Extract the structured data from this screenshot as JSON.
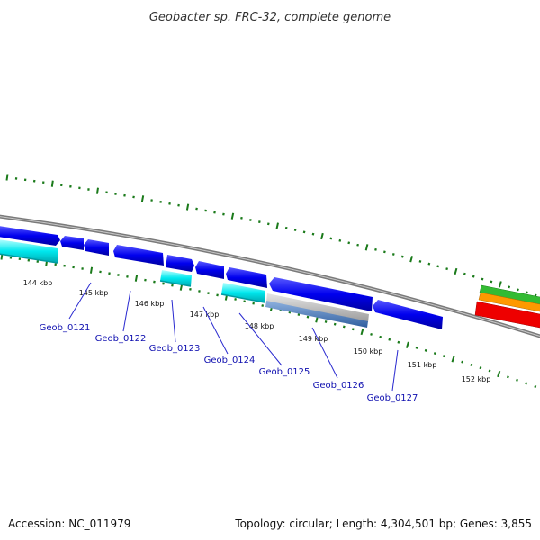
{
  "title": "Geobacter sp. FRC-32, complete genome",
  "footer": {
    "accession": "Accession: NC_011979",
    "stats": "Topology: circular; Length: 4,304,501 bp; Genes: 3,855"
  },
  "ticks": [
    "144 kbp",
    "145 kbp",
    "146 kbp",
    "147 kbp",
    "148 kbp",
    "149 kbp",
    "150 kbp",
    "151 kbp",
    "152 kbp"
  ],
  "genes": [
    "Geob_0121",
    "Geob_0122",
    "Geob_0123",
    "Geob_0124",
    "Geob_0125",
    "Geob_0126",
    "Geob_0127"
  ],
  "colors": {
    "backbone": "#808080",
    "cds": "#0000ee",
    "cyan": "#00e5ee",
    "tick_dots": "#1a7a1a",
    "label": "#1010b0",
    "green": "#33bb33",
    "orange": "#ff9900",
    "red": "#ee0000",
    "gray_feature": "#a8a8a8",
    "steel": "#4a7ab8"
  }
}
